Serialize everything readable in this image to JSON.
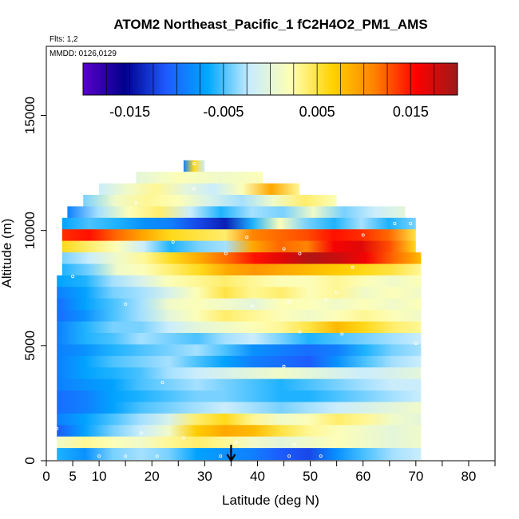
{
  "chart_data": {
    "type": "heatmap",
    "title": "ATOM2 Northeast_Pacific_1 fC2H4O2_PM1_AMS",
    "annotations": {
      "flights": "Flts: 1,2",
      "dates": "MMDD: 0126,0129"
    },
    "xlabel": "Latitude (deg N)",
    "ylabel": "Altitude (m)",
    "xlim": [
      0,
      85
    ],
    "ylim": [
      0,
      18000
    ],
    "x_major_ticks": [
      0,
      5,
      10,
      20,
      30,
      40,
      50,
      60,
      70,
      80
    ],
    "x_minor_ticks": [
      15,
      25,
      35,
      45,
      55,
      65,
      75,
      85
    ],
    "y_ticks": [
      0,
      5000,
      10000,
      15000
    ],
    "colorbar": {
      "range": [
        -0.02,
        0.02
      ],
      "tick_values": [
        -0.015,
        -0.005,
        0.005,
        0.015
      ],
      "tick_labels": [
        "-0.015",
        "-0.005",
        "0.005",
        "0.015"
      ],
      "divisions": [
        -0.0175,
        -0.015,
        -0.0125,
        -0.01,
        -0.0075,
        -0.005,
        -0.0025,
        0,
        0.0025,
        0.005,
        0.0075,
        0.01,
        0.0125,
        0.015,
        0.0175
      ],
      "colors": [
        "#5a00c8",
        "#00008c",
        "#1e5aff",
        "#00a8ff",
        "#c8ecff",
        "#ffffb4",
        "#ffd200",
        "#ff8200",
        "#ff0000",
        "#9c1a1a"
      ]
    },
    "arrow_latitude": 35,
    "layers": [
      {
        "alt": 12800,
        "lat": [
          26,
          30
        ],
        "values": [
          -0.009,
          0.006,
          -0.002
        ]
      },
      {
        "alt": 12300,
        "lat": [
          17,
          41
        ],
        "values": [
          0.0,
          0.002,
          0.001,
          0.002
        ]
      },
      {
        "alt": 11800,
        "lat": [
          10,
          48
        ],
        "values": [
          -0.002,
          0.001,
          0.003,
          0.0,
          -0.002,
          0.002,
          0.009,
          0.003
        ]
      },
      {
        "alt": 11300,
        "lat": [
          7,
          55
        ],
        "values": [
          -0.004,
          0.001,
          0.003,
          0.002,
          -0.001,
          -0.003,
          0.001,
          0.004,
          0.002
        ]
      },
      {
        "alt": 10800,
        "lat": [
          4,
          68
        ],
        "values": [
          -0.009,
          -0.003,
          0.002,
          0.004,
          -0.002,
          -0.006,
          -0.003,
          -0.004,
          0.001,
          -0.004,
          -0.002,
          0.0
        ]
      },
      {
        "alt": 10300,
        "lat": [
          3,
          70
        ],
        "values": [
          -0.007,
          -0.005,
          -0.006,
          -0.008,
          -0.009,
          -0.012,
          -0.014,
          -0.006,
          0.002,
          -0.004,
          -0.006,
          -0.003,
          -0.006,
          -0.004
        ]
      },
      {
        "alt": 9800,
        "lat": [
          3,
          70
        ],
        "values": [
          0.014,
          0.015,
          0.012,
          0.009,
          0.006,
          0.005,
          0.004,
          0.011,
          0.012,
          0.013,
          0.015,
          0.014,
          0.012,
          0.005
        ]
      },
      {
        "alt": 9300,
        "lat": [
          3,
          70
        ],
        "values": [
          0.006,
          0.004,
          0.002,
          -0.002,
          -0.006,
          -0.004,
          -0.003,
          0.009,
          0.012,
          0.011,
          0.016,
          0.017,
          0.013,
          0.006
        ]
      },
      {
        "alt": 8800,
        "lat": [
          3,
          71
        ],
        "values": [
          -0.004,
          -0.002,
          0.001,
          0.003,
          0.006,
          0.009,
          0.012,
          0.015,
          0.017,
          0.019,
          0.018,
          0.016,
          0.012,
          0.008
        ]
      },
      {
        "alt": 8300,
        "lat": [
          3,
          71
        ],
        "values": [
          -0.006,
          -0.004,
          0.001,
          0.002,
          0.004,
          0.006,
          0.009,
          0.01,
          0.009,
          0.008,
          0.007,
          0.006,
          0.005,
          0.003
        ]
      },
      {
        "alt": 7800,
        "lat": [
          2,
          71
        ],
        "values": [
          -0.007,
          -0.006,
          -0.003,
          -0.001,
          0.002,
          0.003,
          0.004,
          0.003,
          0.002,
          0.002,
          0.003,
          0.002,
          0.001,
          0.002
        ]
      },
      {
        "alt": 7300,
        "lat": [
          2,
          71
        ],
        "values": [
          -0.009,
          -0.007,
          -0.004,
          -0.003,
          -0.001,
          0.002,
          0.005,
          0.003,
          0.004,
          0.002,
          0.003,
          0.001,
          0.002,
          0.001
        ]
      },
      {
        "alt": 6800,
        "lat": [
          2,
          71
        ],
        "values": [
          -0.01,
          -0.007,
          -0.005,
          -0.003,
          0.001,
          0.002,
          0.001,
          0.0,
          0.002,
          0.002,
          0.001,
          0.002,
          0.001,
          0.002
        ]
      },
      {
        "alt": 6300,
        "lat": [
          2,
          71
        ],
        "values": [
          -0.01,
          -0.008,
          -0.005,
          -0.003,
          0.0,
          0.002,
          0.004,
          0.003,
          0.002,
          0.001,
          0.002,
          0.003,
          0.002,
          0.001
        ]
      },
      {
        "alt": 5800,
        "lat": [
          2,
          71
        ],
        "values": [
          -0.009,
          -0.006,
          -0.004,
          -0.004,
          -0.002,
          0.0,
          0.001,
          0.002,
          0.003,
          0.005,
          0.008,
          0.006,
          0.004,
          0.003
        ]
      },
      {
        "alt": 5300,
        "lat": [
          2,
          71
        ],
        "values": [
          -0.009,
          -0.006,
          -0.005,
          -0.003,
          -0.004,
          -0.005,
          -0.003,
          -0.002,
          -0.004,
          -0.006,
          -0.005,
          -0.004,
          -0.003,
          -0.002
        ]
      },
      {
        "alt": 4800,
        "lat": [
          2,
          71
        ],
        "values": [
          -0.009,
          -0.008,
          -0.006,
          -0.005,
          -0.004,
          -0.003,
          -0.005,
          -0.008,
          -0.009,
          -0.01,
          -0.009,
          -0.006,
          -0.004,
          -0.003
        ]
      },
      {
        "alt": 4300,
        "lat": [
          2,
          71
        ],
        "values": [
          -0.009,
          -0.007,
          -0.005,
          -0.004,
          -0.003,
          -0.005,
          -0.007,
          -0.009,
          -0.01,
          -0.011,
          -0.008,
          -0.005,
          -0.003,
          -0.002
        ]
      },
      {
        "alt": 3800,
        "lat": [
          2,
          71
        ],
        "values": [
          -0.009,
          -0.007,
          -0.006,
          -0.005,
          -0.003,
          -0.002,
          -0.001,
          0.0,
          0.001,
          0.0,
          -0.001,
          -0.002,
          -0.001,
          0.0
        ]
      },
      {
        "alt": 3300,
        "lat": [
          2,
          71
        ],
        "values": [
          -0.009,
          -0.008,
          -0.007,
          -0.005,
          -0.004,
          -0.003,
          -0.004,
          -0.005,
          -0.006,
          -0.005,
          -0.004,
          -0.003,
          -0.002,
          -0.002
        ]
      },
      {
        "alt": 2800,
        "lat": [
          2,
          71
        ],
        "values": [
          -0.01,
          -0.009,
          -0.007,
          -0.006,
          -0.005,
          -0.004,
          -0.004,
          -0.005,
          -0.006,
          -0.006,
          -0.005,
          -0.004,
          -0.003,
          -0.002
        ]
      },
      {
        "alt": 2300,
        "lat": [
          2,
          71
        ],
        "values": [
          -0.01,
          -0.009,
          -0.007,
          -0.005,
          -0.004,
          -0.003,
          -0.002,
          -0.003,
          -0.004,
          -0.003,
          -0.002,
          -0.001,
          0.0,
          0.001
        ]
      },
      {
        "alt": 1800,
        "lat": [
          2,
          71
        ],
        "values": [
          -0.009,
          -0.007,
          -0.005,
          -0.003,
          -0.001,
          0.004,
          0.006,
          0.003,
          0.001,
          0.002,
          0.004,
          0.003,
          0.001,
          0.0
        ]
      },
      {
        "alt": 1300,
        "lat": [
          2,
          71
        ],
        "values": [
          -0.011,
          -0.007,
          -0.004,
          -0.002,
          0.001,
          0.007,
          0.009,
          0.008,
          0.005,
          0.003,
          0.002,
          0.001,
          0.0,
          0.001
        ]
      },
      {
        "alt": 800,
        "lat": [
          2,
          71
        ],
        "values": [
          0.001,
          0.003,
          0.002,
          0.001,
          0.003,
          0.004,
          0.003,
          0.001,
          0.0,
          0.001,
          0.002,
          0.001,
          0.0,
          0.001
        ]
      },
      {
        "alt": 300,
        "lat": [
          2,
          71
        ],
        "values": [
          -0.006,
          -0.008,
          -0.004,
          -0.003,
          -0.004,
          -0.007,
          -0.008,
          -0.009,
          -0.011,
          -0.012,
          -0.008,
          -0.005,
          -0.003,
          -0.002
        ]
      }
    ],
    "points": [
      [
        5,
        11300
      ],
      [
        17,
        11200
      ],
      [
        28,
        11800
      ],
      [
        24,
        9500
      ],
      [
        34,
        9000
      ],
      [
        38,
        9700
      ],
      [
        45,
        9200
      ],
      [
        48,
        9000
      ],
      [
        58,
        8400
      ],
      [
        60,
        9800
      ],
      [
        66,
        10300
      ],
      [
        69,
        10300
      ],
      [
        5,
        8000
      ],
      [
        15,
        6800
      ],
      [
        39,
        6700
      ],
      [
        46,
        6900
      ],
      [
        53,
        7000
      ],
      [
        55,
        7300
      ],
      [
        48,
        5600
      ],
      [
        56,
        5500
      ],
      [
        70,
        5100
      ],
      [
        45,
        4100
      ],
      [
        22,
        3400
      ],
      [
        2,
        1400
      ],
      [
        18,
        1200
      ],
      [
        26,
        1000
      ],
      [
        36,
        800
      ],
      [
        47,
        700
      ],
      [
        10,
        200
      ],
      [
        15,
        200
      ],
      [
        21,
        200
      ],
      [
        33,
        200
      ],
      [
        46,
        200
      ],
      [
        52,
        200
      ],
      [
        28,
        12900
      ]
    ]
  }
}
